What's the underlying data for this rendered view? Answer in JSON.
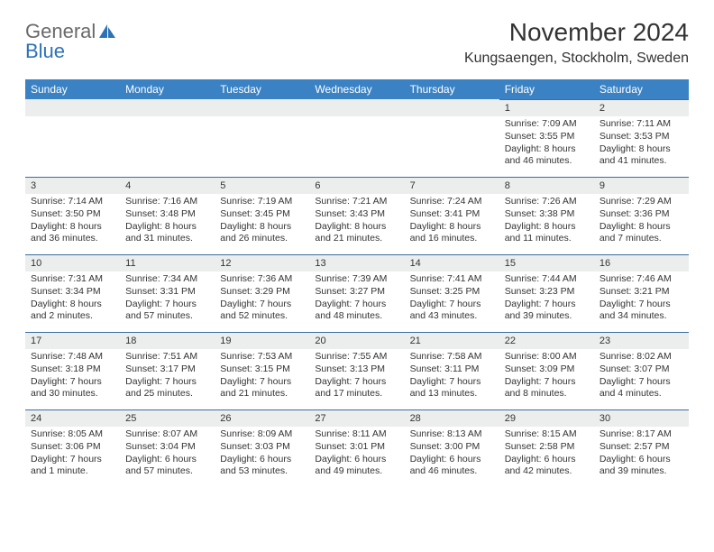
{
  "logo": {
    "text1": "General",
    "text2": "Blue"
  },
  "title": "November 2024",
  "location": "Kungsaengen, Stockholm, Sweden",
  "colors": {
    "header_bg": "#3a82c4",
    "daynum_bg": "#eceded",
    "rule": "#3a6fa0",
    "logo_blue": "#2d72b8",
    "text": "#333333"
  },
  "day_names": [
    "Sunday",
    "Monday",
    "Tuesday",
    "Wednesday",
    "Thursday",
    "Friday",
    "Saturday"
  ],
  "weeks": [
    [
      null,
      null,
      null,
      null,
      null,
      {
        "n": "1",
        "sr": "Sunrise: 7:09 AM",
        "ss": "Sunset: 3:55 PM",
        "d1": "Daylight: 8 hours",
        "d2": "and 46 minutes."
      },
      {
        "n": "2",
        "sr": "Sunrise: 7:11 AM",
        "ss": "Sunset: 3:53 PM",
        "d1": "Daylight: 8 hours",
        "d2": "and 41 minutes."
      }
    ],
    [
      {
        "n": "3",
        "sr": "Sunrise: 7:14 AM",
        "ss": "Sunset: 3:50 PM",
        "d1": "Daylight: 8 hours",
        "d2": "and 36 minutes."
      },
      {
        "n": "4",
        "sr": "Sunrise: 7:16 AM",
        "ss": "Sunset: 3:48 PM",
        "d1": "Daylight: 8 hours",
        "d2": "and 31 minutes."
      },
      {
        "n": "5",
        "sr": "Sunrise: 7:19 AM",
        "ss": "Sunset: 3:45 PM",
        "d1": "Daylight: 8 hours",
        "d2": "and 26 minutes."
      },
      {
        "n": "6",
        "sr": "Sunrise: 7:21 AM",
        "ss": "Sunset: 3:43 PM",
        "d1": "Daylight: 8 hours",
        "d2": "and 21 minutes."
      },
      {
        "n": "7",
        "sr": "Sunrise: 7:24 AM",
        "ss": "Sunset: 3:41 PM",
        "d1": "Daylight: 8 hours",
        "d2": "and 16 minutes."
      },
      {
        "n": "8",
        "sr": "Sunrise: 7:26 AM",
        "ss": "Sunset: 3:38 PM",
        "d1": "Daylight: 8 hours",
        "d2": "and 11 minutes."
      },
      {
        "n": "9",
        "sr": "Sunrise: 7:29 AM",
        "ss": "Sunset: 3:36 PM",
        "d1": "Daylight: 8 hours",
        "d2": "and 7 minutes."
      }
    ],
    [
      {
        "n": "10",
        "sr": "Sunrise: 7:31 AM",
        "ss": "Sunset: 3:34 PM",
        "d1": "Daylight: 8 hours",
        "d2": "and 2 minutes."
      },
      {
        "n": "11",
        "sr": "Sunrise: 7:34 AM",
        "ss": "Sunset: 3:31 PM",
        "d1": "Daylight: 7 hours",
        "d2": "and 57 minutes."
      },
      {
        "n": "12",
        "sr": "Sunrise: 7:36 AM",
        "ss": "Sunset: 3:29 PM",
        "d1": "Daylight: 7 hours",
        "d2": "and 52 minutes."
      },
      {
        "n": "13",
        "sr": "Sunrise: 7:39 AM",
        "ss": "Sunset: 3:27 PM",
        "d1": "Daylight: 7 hours",
        "d2": "and 48 minutes."
      },
      {
        "n": "14",
        "sr": "Sunrise: 7:41 AM",
        "ss": "Sunset: 3:25 PM",
        "d1": "Daylight: 7 hours",
        "d2": "and 43 minutes."
      },
      {
        "n": "15",
        "sr": "Sunrise: 7:44 AM",
        "ss": "Sunset: 3:23 PM",
        "d1": "Daylight: 7 hours",
        "d2": "and 39 minutes."
      },
      {
        "n": "16",
        "sr": "Sunrise: 7:46 AM",
        "ss": "Sunset: 3:21 PM",
        "d1": "Daylight: 7 hours",
        "d2": "and 34 minutes."
      }
    ],
    [
      {
        "n": "17",
        "sr": "Sunrise: 7:48 AM",
        "ss": "Sunset: 3:18 PM",
        "d1": "Daylight: 7 hours",
        "d2": "and 30 minutes."
      },
      {
        "n": "18",
        "sr": "Sunrise: 7:51 AM",
        "ss": "Sunset: 3:17 PM",
        "d1": "Daylight: 7 hours",
        "d2": "and 25 minutes."
      },
      {
        "n": "19",
        "sr": "Sunrise: 7:53 AM",
        "ss": "Sunset: 3:15 PM",
        "d1": "Daylight: 7 hours",
        "d2": "and 21 minutes."
      },
      {
        "n": "20",
        "sr": "Sunrise: 7:55 AM",
        "ss": "Sunset: 3:13 PM",
        "d1": "Daylight: 7 hours",
        "d2": "and 17 minutes."
      },
      {
        "n": "21",
        "sr": "Sunrise: 7:58 AM",
        "ss": "Sunset: 3:11 PM",
        "d1": "Daylight: 7 hours",
        "d2": "and 13 minutes."
      },
      {
        "n": "22",
        "sr": "Sunrise: 8:00 AM",
        "ss": "Sunset: 3:09 PM",
        "d1": "Daylight: 7 hours",
        "d2": "and 8 minutes."
      },
      {
        "n": "23",
        "sr": "Sunrise: 8:02 AM",
        "ss": "Sunset: 3:07 PM",
        "d1": "Daylight: 7 hours",
        "d2": "and 4 minutes."
      }
    ],
    [
      {
        "n": "24",
        "sr": "Sunrise: 8:05 AM",
        "ss": "Sunset: 3:06 PM",
        "d1": "Daylight: 7 hours",
        "d2": "and 1 minute."
      },
      {
        "n": "25",
        "sr": "Sunrise: 8:07 AM",
        "ss": "Sunset: 3:04 PM",
        "d1": "Daylight: 6 hours",
        "d2": "and 57 minutes."
      },
      {
        "n": "26",
        "sr": "Sunrise: 8:09 AM",
        "ss": "Sunset: 3:03 PM",
        "d1": "Daylight: 6 hours",
        "d2": "and 53 minutes."
      },
      {
        "n": "27",
        "sr": "Sunrise: 8:11 AM",
        "ss": "Sunset: 3:01 PM",
        "d1": "Daylight: 6 hours",
        "d2": "and 49 minutes."
      },
      {
        "n": "28",
        "sr": "Sunrise: 8:13 AM",
        "ss": "Sunset: 3:00 PM",
        "d1": "Daylight: 6 hours",
        "d2": "and 46 minutes."
      },
      {
        "n": "29",
        "sr": "Sunrise: 8:15 AM",
        "ss": "Sunset: 2:58 PM",
        "d1": "Daylight: 6 hours",
        "d2": "and 42 minutes."
      },
      {
        "n": "30",
        "sr": "Sunrise: 8:17 AM",
        "ss": "Sunset: 2:57 PM",
        "d1": "Daylight: 6 hours",
        "d2": "and 39 minutes."
      }
    ]
  ]
}
